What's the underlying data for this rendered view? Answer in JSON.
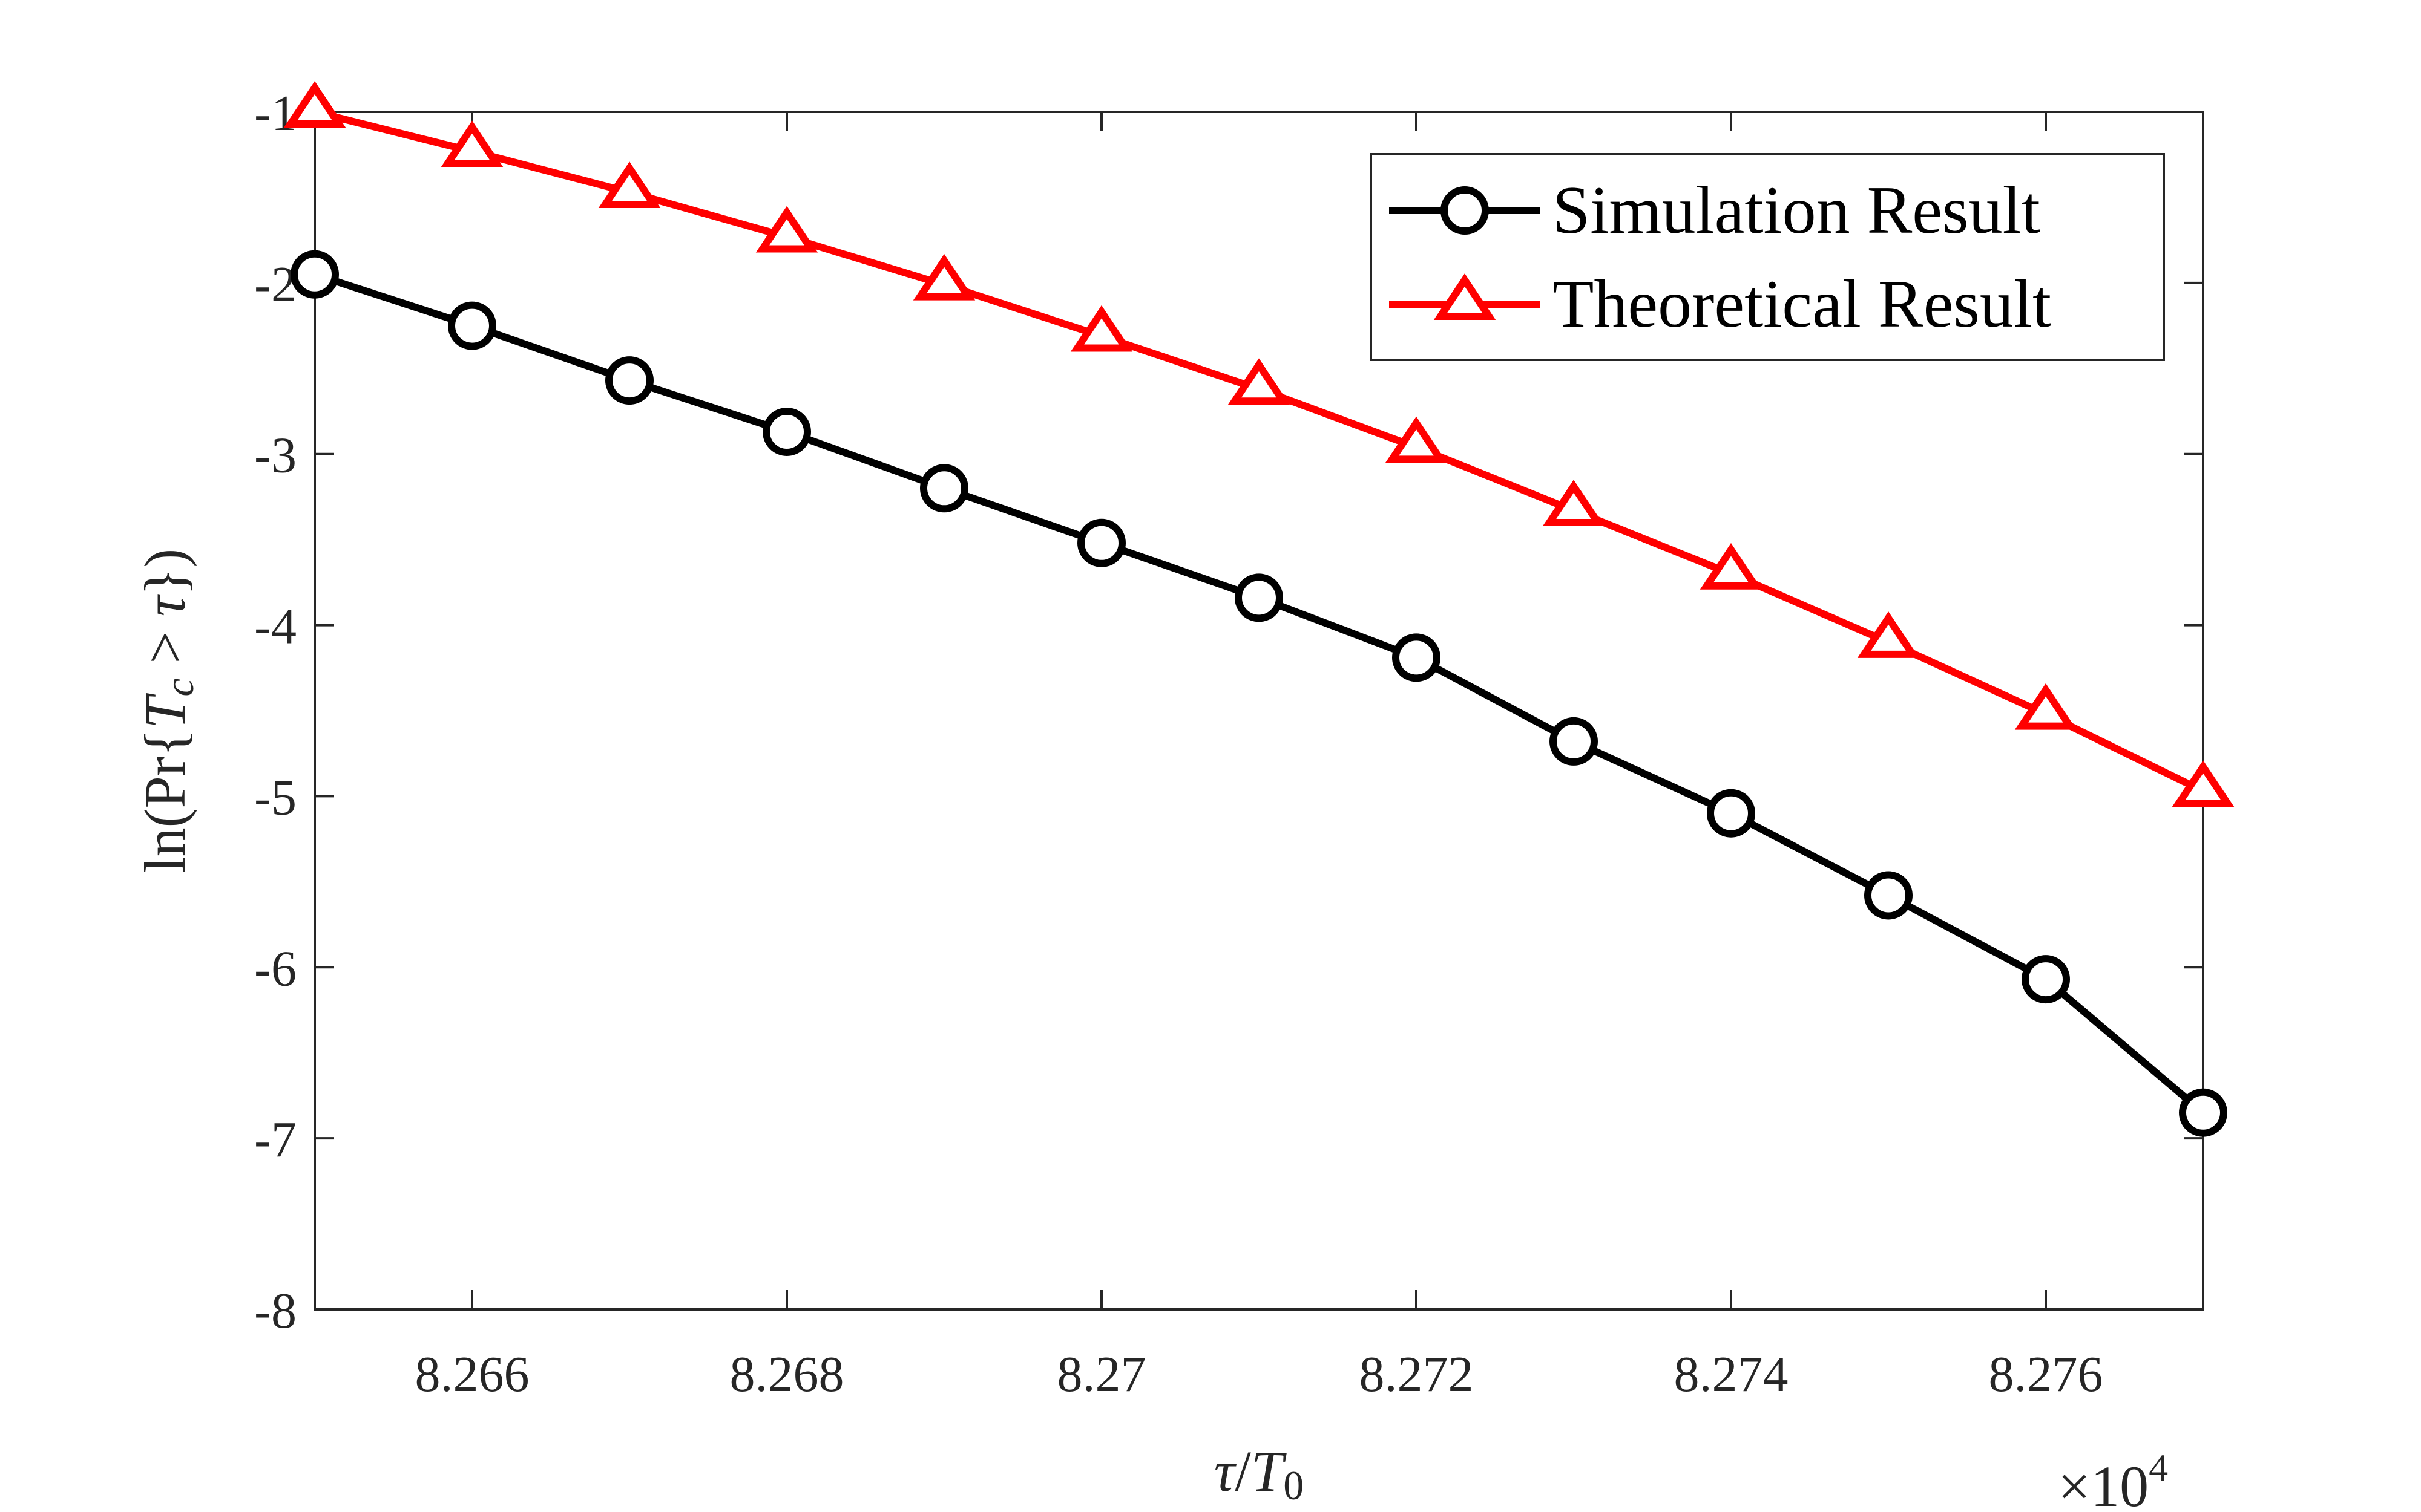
{
  "chart_data": {
    "type": "line",
    "x": [
      82650,
      82660,
      82670,
      82680,
      82690,
      82700,
      82710,
      82720,
      82730,
      82740,
      82750,
      82760,
      82770
    ],
    "series": [
      {
        "name": "Simulation Result",
        "color": "#000000",
        "marker": "circle",
        "values": [
          -1.95,
          -2.25,
          -2.57,
          -2.87,
          -3.2,
          -3.52,
          -3.84,
          -4.19,
          -4.68,
          -5.1,
          -5.58,
          -6.07,
          -6.85
        ]
      },
      {
        "name": "Theoretical Result",
        "color": "#ff0000",
        "marker": "triangle",
        "values": [
          -1.0,
          -1.23,
          -1.47,
          -1.73,
          -2.01,
          -2.31,
          -2.62,
          -2.96,
          -3.33,
          -3.7,
          -4.1,
          -4.52,
          -4.97
        ]
      }
    ],
    "xlim": [
      82650,
      82770
    ],
    "ylim": [
      -8,
      -1
    ],
    "x_ticks": [
      82660,
      82680,
      82700,
      82720,
      82740,
      82760
    ],
    "x_tick_labels": [
      "8.266",
      "8.268",
      "8.27",
      "8.272",
      "8.274",
      "8.276"
    ],
    "y_ticks": [
      -1,
      -2,
      -3,
      -4,
      -5,
      -6,
      -7,
      -8
    ],
    "y_tick_labels": [
      "-1",
      "-2",
      "-3",
      "-4",
      "-5",
      "-6",
      "-7",
      "-8"
    ],
    "x_multiplier": {
      "base": "×10",
      "exponent": "4"
    },
    "xlabel": {
      "tau": "τ",
      "slash": "/",
      "T": "T",
      "sub": "0"
    },
    "ylabel": {
      "prefix": "ln(Pr{",
      "T": "T",
      "sub": "c",
      "rel": " > ",
      "tau": "τ",
      "suffix": "})"
    },
    "legend_position": "top-right",
    "grid": false
  }
}
